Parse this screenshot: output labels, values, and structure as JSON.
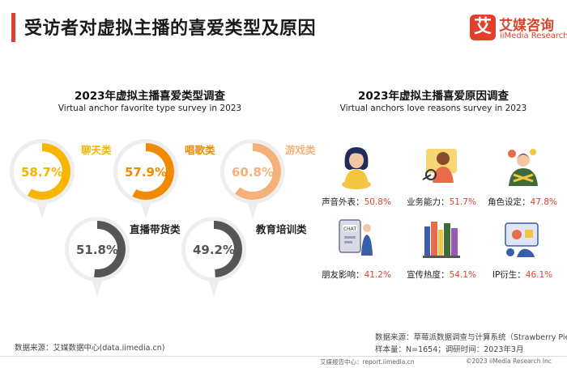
{
  "header": {
    "title": "受访者对虚拟主播的喜爱类型及原因",
    "logo_mark": "艾",
    "logo_cn": "艾媒咨询",
    "logo_en": "iiMedia Research"
  },
  "left_section": {
    "title": "2023年虚拟主播喜爱类型调查",
    "subtitle": "Virtual anchor favorite type survey in 2023"
  },
  "right_section": {
    "title": "2023年虚拟主播喜爱原因调查",
    "subtitle": "Virtual anchors love reasons survey in 2023"
  },
  "chart_data": [
    {
      "type": "gauge",
      "title": "2023年虚拟主播喜爱类型调查",
      "categories": [
        "聊天类",
        "唱歌类",
        "游戏类",
        "直播带货类",
        "教育培训类"
      ],
      "values": [
        58.7,
        57.9,
        60.8,
        51.8,
        49.2
      ],
      "value_labels": [
        "58.7%",
        "57.9%",
        "60.8%",
        "51.8%",
        "49.2%"
      ],
      "colors": [
        "#f7b500",
        "#f08a00",
        "#f5b17a",
        "#555555",
        "#555555"
      ],
      "range": [
        0,
        100
      ]
    },
    {
      "type": "table",
      "title": "2023年虚拟主播喜爱原因调查",
      "categories": [
        "声音外表",
        "业务能力",
        "角色设定",
        "朋友影响",
        "宣传热度",
        "IP衍生"
      ],
      "values": [
        50.8,
        51.7,
        47.8,
        41.2,
        54.1,
        46.1
      ],
      "labels": [
        "声音外表：",
        "业务能力：",
        "角色设定：",
        "朋友影响：",
        "宣传热度：",
        "IP衍生："
      ],
      "value_labels": [
        "50.8%",
        "51.7%",
        "47.8%",
        "41.2%",
        "54.1%",
        "46.1%"
      ]
    }
  ],
  "sources": {
    "left": "数据来源：艾媒数据中心(data.iimedia.cn)",
    "right_line1": "数据来源：草莓派数据调查与计算系统（Strawberry Pie）",
    "right_line2": "样本量：N=1654；调研时间：2023年3月"
  },
  "footer": {
    "report": "艾媒报告中心：report.iimedia.cn",
    "copyright": "©2023  iiMedia Research  Inc"
  },
  "colors": {
    "accent_red": "#d9442e",
    "bubble_bg": "#eeeeee"
  },
  "icons": [
    "singer-icon",
    "performer-icon",
    "character-icon",
    "chat-icon",
    "books-icon",
    "ip-game-icon"
  ]
}
